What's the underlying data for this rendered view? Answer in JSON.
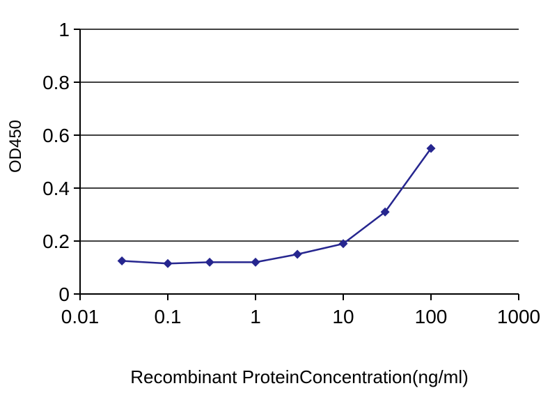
{
  "chart_data": {
    "type": "line",
    "title": "",
    "xlabel": "Recombinant ProteinConcentration(ng/ml)",
    "ylabel": "OD450",
    "x_scale": "log",
    "xlim": [
      0.01,
      1000
    ],
    "ylim": [
      0,
      1
    ],
    "x_ticks": [
      "0.01",
      "0.1",
      "1",
      "10",
      "100",
      "1000"
    ],
    "y_ticks": [
      "0",
      "0.2",
      "0.4",
      "0.6",
      "0.8",
      "1"
    ],
    "grid": "horizontal",
    "legend": "none",
    "marker": "diamond",
    "x": [
      0.03,
      0.1,
      0.3,
      1,
      3,
      10,
      30,
      100
    ],
    "series": [
      {
        "name": "OD450",
        "values": [
          0.125,
          0.115,
          0.12,
          0.12,
          0.15,
          0.19,
          0.31,
          0.55
        ]
      }
    ],
    "colors": {
      "series": "#26268f",
      "axis": "#000000",
      "grid": "#000000",
      "background": "#ffffff",
      "text": "#000000"
    }
  }
}
